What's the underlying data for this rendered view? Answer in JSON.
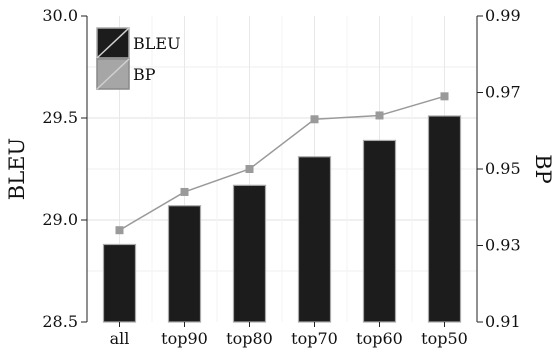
{
  "chart_data": {
    "type": "bar",
    "categories": [
      "all",
      "top90",
      "top80",
      "top70",
      "top60",
      "top50"
    ],
    "series": [
      {
        "name": "BLEU",
        "type": "bar",
        "axis": "left",
        "values": [
          28.88,
          29.07,
          29.17,
          29.31,
          29.39,
          29.51
        ],
        "color": "#1c1c1c",
        "edge_color": "#aaaaaa"
      },
      {
        "name": "BP",
        "type": "line",
        "axis": "right",
        "values": [
          0.934,
          0.944,
          0.95,
          0.963,
          0.964,
          0.969
        ],
        "color": "#9a9a9a"
      }
    ],
    "ylabel": "BLEU",
    "y2label": "BP",
    "ylim": [
      28.5,
      30.0
    ],
    "y2lim": [
      0.91,
      0.99
    ],
    "yticks": [
      "28.5",
      "29.0",
      "29.5",
      "30.0"
    ],
    "y2ticks": [
      "0.91",
      "0.93",
      "0.95",
      "0.97",
      "0.99"
    ],
    "grid": true,
    "legend_position": "top-left"
  }
}
